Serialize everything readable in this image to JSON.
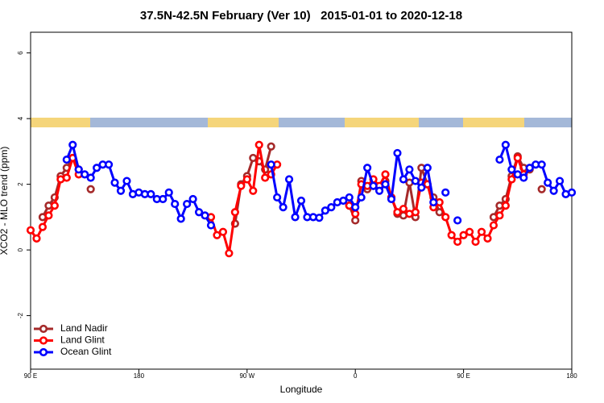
{
  "chart_data": {
    "type": "line",
    "title": "37.5N-42.5N February (Ver 10)   2015-01-01 to 2020-12-18",
    "x_label": "Longitude",
    "y_label": "XCO2 - MLO trend (ppm)",
    "xlim": [
      90,
      540
    ],
    "xticks": [
      {
        "value": 90,
        "label": "90 E"
      },
      180,
      {
        "value": 270,
        "label": "90 W"
      },
      {
        "value": 360,
        "label": "0"
      },
      {
        "value": 450,
        "label": "90 E"
      },
      {
        "value": 540,
        "label": "180"
      }
    ],
    "ylim": [
      -3.63,
      6.63
    ],
    "yticks": [
      -2,
      0,
      2,
      4,
      6
    ],
    "legend": "bottomleft",
    "series": [
      {
        "name": "Land Nadir",
        "color": "#a52a2a",
        "x": [
          100,
          105,
          110,
          115,
          120,
          125,
          130,
          135,
          140,
          145,
          260,
          265,
          270,
          275,
          280,
          285,
          290,
          295,
          355,
          360,
          365,
          370,
          375,
          380,
          385,
          390,
          395,
          400,
          405,
          410,
          415,
          420,
          425,
          430,
          435,
          475,
          480,
          485,
          490,
          495,
          500,
          505,
          510,
          515
        ],
        "values": [
          1,
          1.35,
          1.6,
          2.25,
          2.5,
          2.8,
          2.45,
          null,
          1.85,
          null,
          0.8,
          2,
          2.25,
          2.8,
          2.7,
          2.45,
          3.15,
          null,
          1.35,
          0.9,
          2.1,
          1.85,
          1.95,
          1.9,
          2.1,
          1.6,
          1.1,
          1.05,
          2.05,
          1,
          2.5,
          2,
          1.6,
          1.15,
          null,
          1,
          1.35,
          1.55,
          2.25,
          2.85,
          2.5,
          2.45,
          null,
          1.85
        ]
      },
      {
        "name": "Land Glint",
        "color": "#ff0000",
        "x": [
          90,
          95,
          100,
          105,
          110,
          115,
          120,
          125,
          130,
          135,
          240,
          245,
          250,
          255,
          260,
          265,
          270,
          275,
          280,
          285,
          290,
          295,
          300,
          355,
          360,
          365,
          370,
          375,
          380,
          385,
          390,
          395,
          400,
          405,
          410,
          415,
          420,
          425,
          430,
          435,
          440,
          445,
          450,
          455,
          460,
          465,
          470,
          475,
          480,
          485,
          490,
          495,
          500
        ],
        "values": [
          0.6,
          0.35,
          0.7,
          1.05,
          1.35,
          2.15,
          2.2,
          2.8,
          2.3,
          null,
          1,
          0.45,
          0.55,
          -0.1,
          1.15,
          1.95,
          2.15,
          1.8,
          3.2,
          2.2,
          2.3,
          2.6,
          null,
          1.35,
          1.1,
          2,
          1.95,
          2.15,
          1.95,
          2.3,
          1.6,
          1.15,
          1.25,
          1.1,
          1.15,
          2.05,
          2,
          1.3,
          1.45,
          1,
          0.45,
          0.25,
          0.45,
          0.55,
          0.25,
          0.55,
          0.35,
          0.75,
          1.05,
          1.35,
          2.15,
          2.8,
          2.3
        ]
      },
      {
        "name": "Ocean Glint",
        "color": "#0000ff",
        "x": [
          120,
          125,
          130,
          135,
          140,
          145,
          150,
          155,
          160,
          165,
          170,
          175,
          180,
          185,
          190,
          195,
          200,
          205,
          210,
          215,
          220,
          225,
          230,
          235,
          240,
          245,
          290,
          295,
          300,
          305,
          310,
          315,
          320,
          325,
          330,
          335,
          340,
          345,
          350,
          355,
          360,
          365,
          370,
          375,
          380,
          385,
          390,
          395,
          400,
          405,
          410,
          415,
          420,
          425,
          430,
          435,
          440,
          445,
          450,
          480,
          485,
          490,
          495,
          500,
          505,
          510,
          515,
          520,
          525,
          530,
          535,
          540
        ],
        "values": [
          2.75,
          3.2,
          2.45,
          2.3,
          2.2,
          2.5,
          2.6,
          2.6,
          2.05,
          1.8,
          2.1,
          1.7,
          1.75,
          1.7,
          1.7,
          1.55,
          1.55,
          1.75,
          1.4,
          0.95,
          1.4,
          1.55,
          1.15,
          1.05,
          0.75,
          null,
          2.6,
          1.6,
          1.3,
          2.15,
          1,
          1.5,
          1,
          1,
          0.98,
          1.2,
          1.3,
          1.45,
          1.5,
          1.6,
          1.3,
          1.6,
          2.5,
          1.95,
          1.8,
          2,
          1.55,
          2.95,
          2.15,
          2.45,
          2.1,
          1.9,
          2.5,
          1.45,
          null,
          1.75,
          null,
          0.9,
          null,
          2.75,
          3.2,
          2.45,
          2.3,
          2.2,
          2.5,
          2.6,
          2.6,
          2.05,
          1.8,
          2.1,
          1.7,
          1.75
        ]
      }
    ]
  }
}
